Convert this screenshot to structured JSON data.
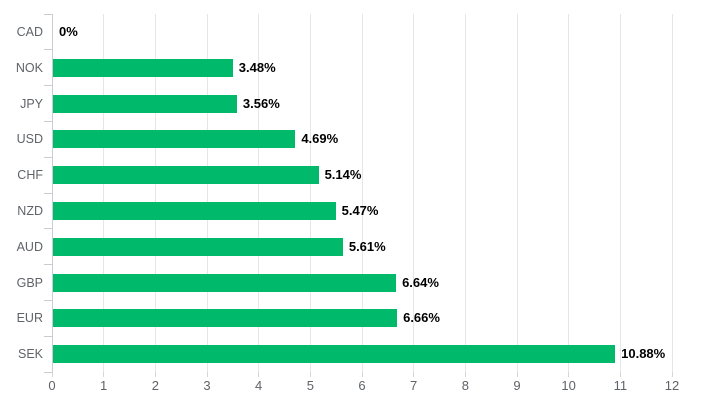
{
  "chart_data": {
    "type": "bar",
    "orientation": "horizontal",
    "title": "",
    "xlabel": "",
    "ylabel": "",
    "categories": [
      "CAD",
      "NOK",
      "JPY",
      "USD",
      "CHF",
      "NZD",
      "AUD",
      "GBP",
      "EUR",
      "SEK"
    ],
    "values": [
      0,
      3.48,
      3.56,
      4.69,
      5.14,
      5.47,
      5.61,
      6.64,
      6.66,
      10.88
    ],
    "data_labels": [
      "0%",
      "3.48%",
      "3.56%",
      "4.69%",
      "5.14%",
      "5.47%",
      "5.61%",
      "6.64%",
      "6.66%",
      "10.88%"
    ],
    "x_ticks": [
      "0",
      "1",
      "2",
      "3",
      "4",
      "5",
      "6",
      "7",
      "8",
      "9",
      "10",
      "11",
      "12"
    ],
    "xlim": [
      0,
      12
    ],
    "grid": true,
    "legend": false,
    "colors": {
      "bar": "#00b96b",
      "value_label": "#000000",
      "category_label": "#5f6368",
      "tick_label": "#5f6368",
      "gridline": "#e6e6e6",
      "axis": "#c9cdd3"
    }
  }
}
